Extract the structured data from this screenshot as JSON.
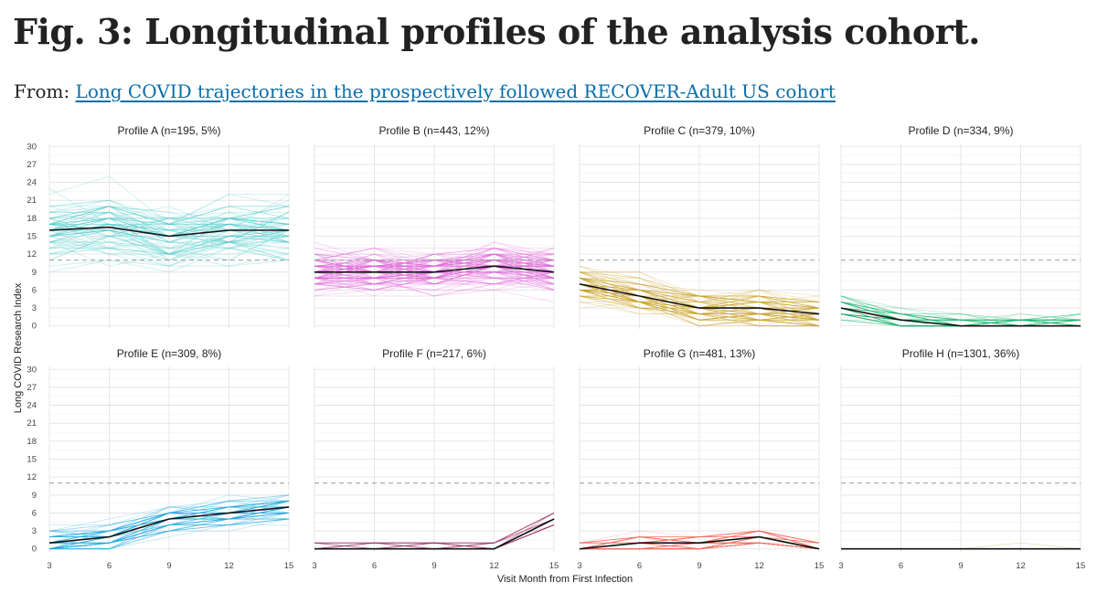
{
  "page": {
    "title": "Fig. 3: Longitudinal profiles of the analysis cohort.",
    "from_label": "From:",
    "from_link": "Long COVID trajectories in the prospectively followed RECOVER-Adult US cohort"
  },
  "chart_data": {
    "type": "line",
    "xlabel": "Visit Month from First Infection",
    "ylabel": "Long COVID Research Index",
    "x": [
      3,
      6,
      9,
      12,
      15
    ],
    "xticks": [
      3,
      6,
      9,
      12,
      15
    ],
    "yticks": [
      0,
      3,
      6,
      9,
      12,
      15,
      18,
      21,
      24,
      27,
      30
    ],
    "ylim": [
      -0.5,
      30.5
    ],
    "threshold": 11,
    "grid": true,
    "panels": [
      {
        "title": "Profile A (n=195, 5%)",
        "color": "#3ec7c7",
        "mean": [
          16,
          16.5,
          15,
          16,
          16
        ]
      },
      {
        "title": "Profile B (n=443, 12%)",
        "color": "#e066d6",
        "mean": [
          9,
          9,
          9,
          10,
          9
        ]
      },
      {
        "title": "Profile C (n=379, 10%)",
        "color": "#c9a227",
        "mean": [
          7,
          5,
          3,
          3,
          2
        ]
      },
      {
        "title": "Profile D (n=334, 9%)",
        "color": "#14b36a",
        "mean": [
          3,
          1,
          0,
          0,
          0
        ]
      },
      {
        "title": "Profile E (n=309, 8%)",
        "color": "#22a8e0",
        "mean": [
          1,
          2,
          5,
          6,
          7
        ]
      },
      {
        "title": "Profile F (n=217, 6%)",
        "color": "#9c2a63",
        "mean": [
          0,
          0,
          0,
          0,
          5
        ]
      },
      {
        "title": "Profile G (n=481, 13%)",
        "color": "#f06c5e",
        "mean": [
          0,
          1,
          1,
          2,
          0
        ]
      },
      {
        "title": "Profile H (n=1301, 36%)",
        "color": "#8cb61e",
        "mean": [
          0,
          0,
          0,
          0,
          0
        ]
      }
    ]
  }
}
